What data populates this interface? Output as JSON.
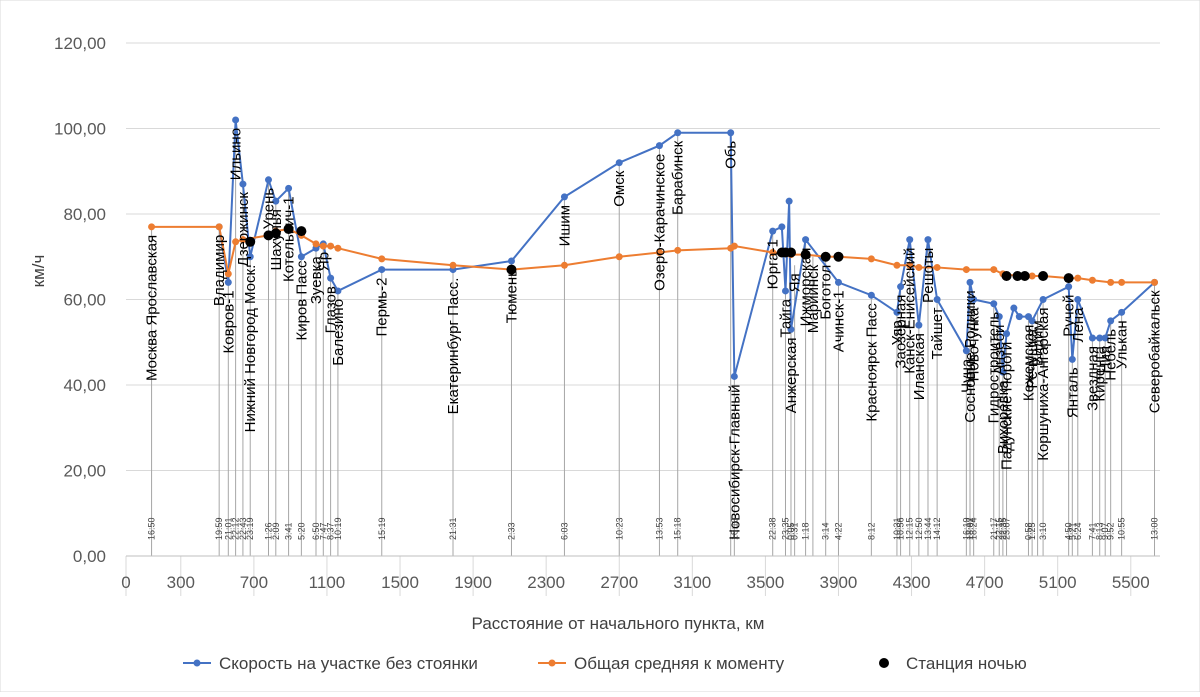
{
  "chart_data": {
    "type": "line",
    "title": "",
    "xlabel": "Расстояние от начального пункта, км",
    "ylabel": "км/ч",
    "xlim": [
      0,
      5660
    ],
    "ylim": [
      0,
      120
    ],
    "grid": true,
    "legend_position": "bottom",
    "x_ticks": [
      0,
      300,
      700,
      1100,
      1500,
      1900,
      2300,
      2700,
      3100,
      3500,
      3900,
      4300,
      4700,
      5100,
      5500
    ],
    "x_tick_labels": [
      "0",
      "300",
      "700",
      "1100",
      "1500",
      "1900",
      "2300",
      "2700",
      "3100",
      "3500",
      "3900",
      "4300",
      "4700",
      "5100",
      "5500"
    ],
    "y_ticks": [
      0,
      20,
      40,
      60,
      80,
      100,
      120
    ],
    "y_tick_labels": [
      "0,00",
      "20,00",
      "40,00",
      "60,00",
      "80,00",
      "100,00",
      "120,00"
    ],
    "stations": [
      {
        "name": "Москва Ярославская",
        "x": 140,
        "time": "16:50",
        "label_y": 77
      },
      {
        "name": "Владимир",
        "x": 510,
        "time": "19:59",
        "label_y": 77
      },
      {
        "name": "Ковров-1",
        "x": 560,
        "time": "21:01",
        "label_y": 64
      },
      {
        "name": "Ильино",
        "x": 600,
        "time": "22:12",
        "label_y": 102
      },
      {
        "name": "Дзержинск",
        "x": 640,
        "time": "22:43",
        "label_y": 87
      },
      {
        "name": "Нижний Новгород Моск.",
        "x": 680,
        "time": "23:19",
        "label_y": 70
      },
      {
        "name": "Урень",
        "x": 780,
        "time": "1:26",
        "label_y": 88
      },
      {
        "name": "Шахунья",
        "x": 820,
        "time": "2:09",
        "label_y": 83
      },
      {
        "name": "Котельнич-1",
        "x": 890,
        "time": "3:41",
        "label_y": 86
      },
      {
        "name": "Киров Пасс",
        "x": 960,
        "time": "5:20",
        "label_y": 71
      },
      {
        "name": "Зуевка",
        "x": 1040,
        "time": "6:50",
        "label_y": 72
      },
      {
        "name": "Яр",
        "x": 1080,
        "time": "7:47",
        "label_y": 73
      },
      {
        "name": "Глазов",
        "x": 1120,
        "time": "8:37",
        "label_y": 65
      },
      {
        "name": "Балезино",
        "x": 1160,
        "time": "10:19",
        "label_y": 62
      },
      {
        "name": "Пермь-2",
        "x": 1400,
        "time": "15:19",
        "label_y": 67
      },
      {
        "name": "Екатеринбург Пасс.",
        "x": 1790,
        "time": "21:31",
        "label_y": 67
      },
      {
        "name": "Тюмень",
        "x": 2110,
        "time": "2:33",
        "label_y": 69
      },
      {
        "name": "Ишим",
        "x": 2400,
        "time": "6:03",
        "label_y": 84
      },
      {
        "name": "Омск",
        "x": 2700,
        "time": "10:23",
        "label_y": 92
      },
      {
        "name": "Озеро-Карачинское",
        "x": 2920,
        "time": "13:53",
        "label_y": 96
      },
      {
        "name": "Барабинск",
        "x": 3020,
        "time": "15:18",
        "label_y": 99
      },
      {
        "name": "Новосибирск-Главный",
        "x": 3330,
        "time": "18:13",
        "label_y": 42
      },
      {
        "name": "Обь",
        "x": 3310,
        "time": "",
        "label_y": 99
      },
      {
        "name": "Юрга-1",
        "x": 3540,
        "time": "22:38",
        "label_y": 76
      },
      {
        "name": "Тайга",
        "x": 3610,
        "time": "23:35",
        "label_y": 62
      },
      {
        "name": "Анжерская",
        "x": 3640,
        "time": "0:05",
        "label_y": 53
      },
      {
        "name": "Яя",
        "x": 3660,
        "time": "0:31",
        "label_y": 68
      },
      {
        "name": "Ижморская",
        "x": 3720,
        "time": "1:18",
        "label_y": 74
      },
      {
        "name": "Мариинск",
        "x": 3760,
        "time": "",
        "label_y": 70
      },
      {
        "name": "Боготол",
        "x": 3830,
        "time": "3:14",
        "label_y": 70
      },
      {
        "name": "Ачинск-1",
        "x": 3900,
        "time": "4:22",
        "label_y": 64
      },
      {
        "name": "Красноярск Пасс",
        "x": 4080,
        "time": "8:12",
        "label_y": 61
      },
      {
        "name": "Уяр",
        "x": 4220,
        "time": "10:31",
        "label_y": 57
      },
      {
        "name": "Заозёрная",
        "x": 4240,
        "time": "10:56",
        "label_y": 63
      },
      {
        "name": "Канск-Енисейский",
        "x": 4290,
        "time": "12:15",
        "label_y": 74
      },
      {
        "name": "Иланская",
        "x": 4340,
        "time": "12:50",
        "label_y": 54
      },
      {
        "name": "Решоты",
        "x": 4390,
        "time": "13:44",
        "label_y": 74
      },
      {
        "name": "Тайшет",
        "x": 4440,
        "time": "14:12",
        "label_y": 60
      },
      {
        "name": "Чуна",
        "x": 4600,
        "time": "16:19",
        "label_y": 48
      },
      {
        "name": "Сосновые Родники",
        "x": 4620,
        "time": "18:02",
        "label_y": 64
      },
      {
        "name": "Новочунка",
        "x": 4640,
        "time": "18:24",
        "label_y": 60
      },
      {
        "name": "Гидростроитель",
        "x": 4750,
        "time": "21:17",
        "label_y": 59
      },
      {
        "name": "Анзёби",
        "x": 4780,
        "time": "22:15",
        "label_y": 56
      },
      {
        "name": "Вихоревка",
        "x": 4800,
        "time": "22:35",
        "label_y": 43
      },
      {
        "name": "Падунские Пороги",
        "x": 4820,
        "time": "23:07",
        "label_y": 52
      },
      {
        "name": "Кежемская",
        "x": 4940,
        "time": "0:58",
        "label_y": 56
      },
      {
        "name": "Речушка",
        "x": 4960,
        "time": "1:25",
        "label_y": 55
      },
      {
        "name": "Видим",
        "x": 4990,
        "time": "",
        "label_y": 57
      },
      {
        "name": "Коршуниха-Ангарская",
        "x": 5020,
        "time": "3:10",
        "label_y": 60
      },
      {
        "name": "Ручей",
        "x": 5160,
        "time": "4:50",
        "label_y": 63
      },
      {
        "name": "Янталь",
        "x": 5180,
        "time": "5:21",
        "label_y": 46
      },
      {
        "name": "Лена",
        "x": 5210,
        "time": "6:24",
        "label_y": 60
      },
      {
        "name": "Звездная",
        "x": 5290,
        "time": "7:41",
        "label_y": 51
      },
      {
        "name": "Киренга",
        "x": 5330,
        "time": "8:13",
        "label_y": 51
      },
      {
        "name": "Ния",
        "x": 5360,
        "time": "9:07",
        "label_y": 51
      },
      {
        "name": "Небель",
        "x": 5390,
        "time": "9:52",
        "label_y": 55
      },
      {
        "name": "Улькан",
        "x": 5450,
        "time": "10:55",
        "label_y": 57
      },
      {
        "name": "Северобайкальск",
        "x": 5630,
        "time": "13:00",
        "label_y": 64
      }
    ],
    "series": [
      {
        "name": "Скорость на участке без стоянки",
        "color": "#4472c4",
        "points": [
          [
            510,
            77
          ],
          [
            560,
            64
          ],
          [
            600,
            102
          ],
          [
            640,
            87
          ],
          [
            680,
            70
          ],
          [
            780,
            88
          ],
          [
            820,
            83
          ],
          [
            890,
            86
          ],
          [
            960,
            70
          ],
          [
            1040,
            72
          ],
          [
            1080,
            73
          ],
          [
            1120,
            65
          ],
          [
            1160,
            62
          ],
          [
            1400,
            67
          ],
          [
            1790,
            67
          ],
          [
            2110,
            69
          ],
          [
            2400,
            84
          ],
          [
            2700,
            92
          ],
          [
            2920,
            96
          ],
          [
            3020,
            99
          ],
          [
            3310,
            99
          ],
          [
            3330,
            42
          ],
          [
            3540,
            76
          ],
          [
            3590,
            77
          ],
          [
            3610,
            62
          ],
          [
            3630,
            83
          ],
          [
            3640,
            53
          ],
          [
            3720,
            74
          ],
          [
            3900,
            64
          ],
          [
            4080,
            61
          ],
          [
            4220,
            57
          ],
          [
            4240,
            63
          ],
          [
            4290,
            74
          ],
          [
            4340,
            54
          ],
          [
            4390,
            74
          ],
          [
            4440,
            60
          ],
          [
            4600,
            48
          ],
          [
            4620,
            64
          ],
          [
            4640,
            60
          ],
          [
            4750,
            59
          ],
          [
            4780,
            56
          ],
          [
            4800,
            43
          ],
          [
            4820,
            52
          ],
          [
            4860,
            58
          ],
          [
            4890,
            56
          ],
          [
            4940,
            56
          ],
          [
            4960,
            55
          ],
          [
            5020,
            60
          ],
          [
            5160,
            63
          ],
          [
            5180,
            46
          ],
          [
            5210,
            60
          ],
          [
            5290,
            51
          ],
          [
            5330,
            51
          ],
          [
            5360,
            51
          ],
          [
            5390,
            55
          ],
          [
            5450,
            57
          ],
          [
            5630,
            64
          ]
        ]
      },
      {
        "name": "Общая средняя к моменту",
        "color": "#ed7d31",
        "points": [
          [
            140,
            77
          ],
          [
            510,
            77
          ],
          [
            560,
            66
          ],
          [
            600,
            73.5
          ],
          [
            640,
            74
          ],
          [
            780,
            75
          ],
          [
            820,
            76
          ],
          [
            890,
            76.5
          ],
          [
            960,
            75
          ],
          [
            1040,
            73
          ],
          [
            1080,
            72.5
          ],
          [
            1120,
            72.5
          ],
          [
            1160,
            72
          ],
          [
            1400,
            69.5
          ],
          [
            1790,
            68
          ],
          [
            2110,
            67
          ],
          [
            2400,
            68
          ],
          [
            2700,
            70
          ],
          [
            2920,
            71
          ],
          [
            3020,
            71.5
          ],
          [
            3310,
            72
          ],
          [
            3330,
            72.5
          ],
          [
            3540,
            71
          ],
          [
            3590,
            71
          ],
          [
            3640,
            70.5
          ],
          [
            3720,
            70.5
          ],
          [
            3830,
            70
          ],
          [
            3900,
            70
          ],
          [
            4080,
            69.5
          ],
          [
            4220,
            68
          ],
          [
            4290,
            68
          ],
          [
            4340,
            67.5
          ],
          [
            4440,
            67.5
          ],
          [
            4600,
            67
          ],
          [
            4750,
            67
          ],
          [
            4800,
            66
          ],
          [
            4880,
            65.5
          ],
          [
            4960,
            65.5
          ],
          [
            5020,
            65.5
          ],
          [
            5160,
            65
          ],
          [
            5210,
            65
          ],
          [
            5290,
            64.5
          ],
          [
            5390,
            64
          ],
          [
            5450,
            64
          ],
          [
            5630,
            64
          ]
        ]
      },
      {
        "name": "Станция ночью",
        "color": "#000000",
        "points": [
          [
            680,
            73.5
          ],
          [
            780,
            75
          ],
          [
            820,
            75.5
          ],
          [
            890,
            76.5
          ],
          [
            960,
            76
          ],
          [
            2110,
            67
          ],
          [
            3590,
            71
          ],
          [
            3610,
            71
          ],
          [
            3640,
            71
          ],
          [
            3720,
            70.5
          ],
          [
            3830,
            70
          ],
          [
            3900,
            70
          ],
          [
            4820,
            65.5
          ],
          [
            4880,
            65.5
          ],
          [
            4920,
            65.5
          ],
          [
            5020,
            65.5
          ],
          [
            5160,
            65
          ]
        ]
      }
    ]
  }
}
